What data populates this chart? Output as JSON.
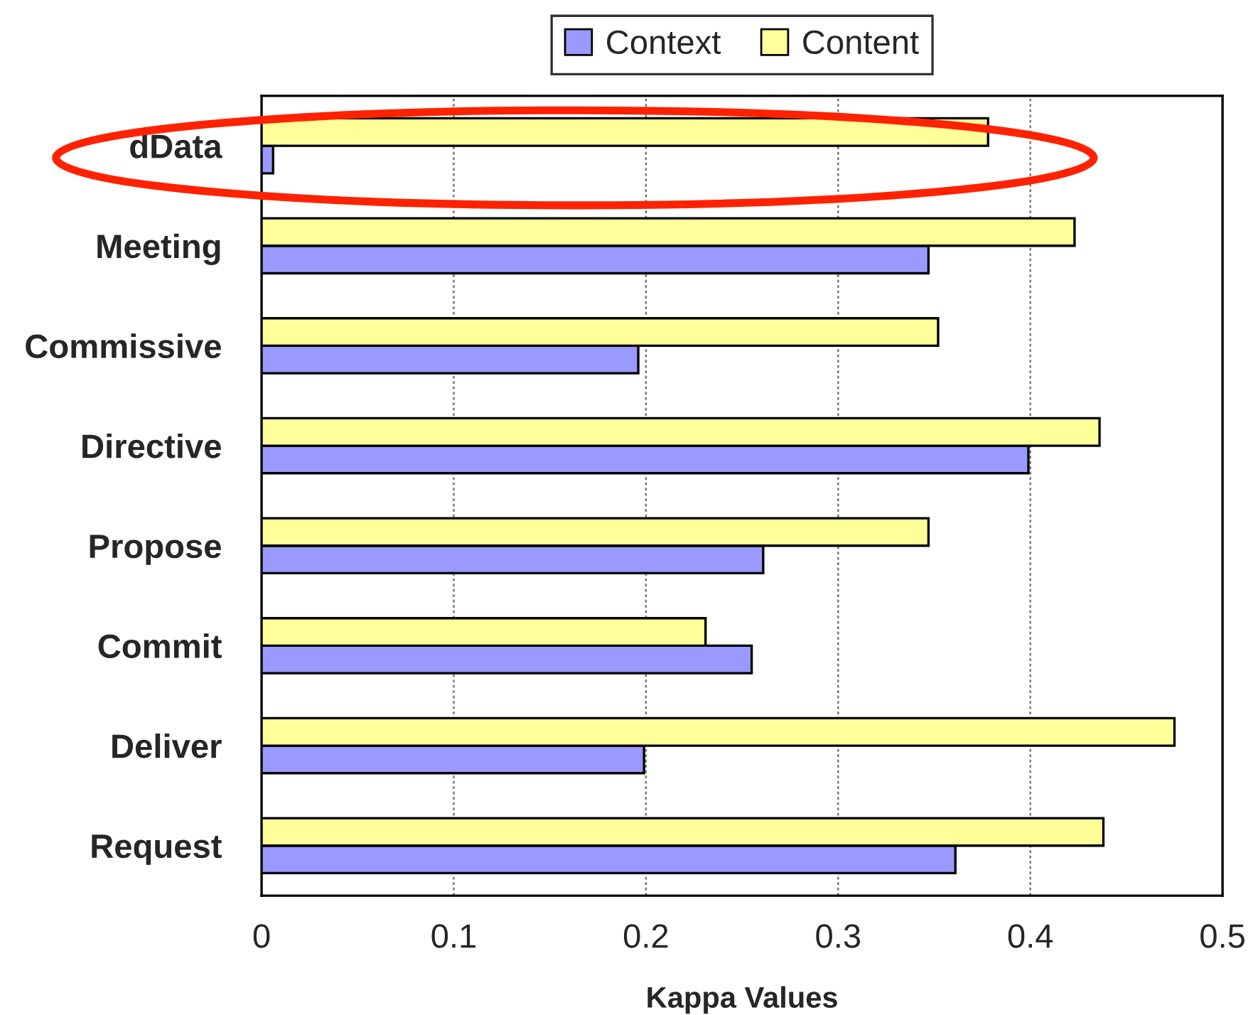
{
  "chart_data": {
    "type": "bar",
    "orientation": "horizontal",
    "xlabel": "Kappa Values",
    "categories": [
      "dData",
      "Meeting",
      "Commissive",
      "Directive",
      "Propose",
      "Commit",
      "Deliver",
      "Request"
    ],
    "series": [
      {
        "name": "Context",
        "color": "#9999ff",
        "values": [
          0.006,
          0.347,
          0.196,
          0.399,
          0.261,
          0.255,
          0.199,
          0.361
        ]
      },
      {
        "name": "Content",
        "color": "#ffff99",
        "values": [
          0.378,
          0.423,
          0.352,
          0.436,
          0.347,
          0.231,
          0.475,
          0.438
        ]
      }
    ],
    "xlim": [
      0,
      0.5
    ],
    "xticks": [
      0,
      0.1,
      0.2,
      0.3,
      0.4,
      0.5
    ],
    "grid": "x",
    "legend": "top"
  }
}
